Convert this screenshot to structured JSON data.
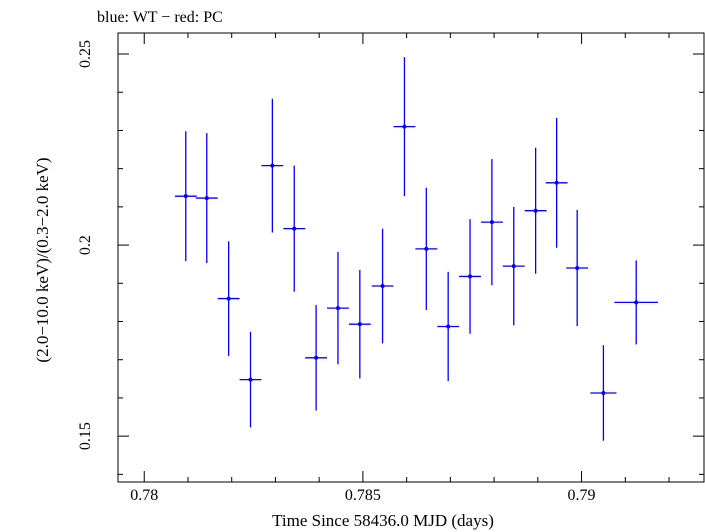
{
  "chart_data": {
    "type": "scatter",
    "title": "blue: WT − red: PC",
    "xlabel": "Time Since 58436.0 MJD (days)",
    "ylabel": "(2.0−10.0 keV)/(0.3−2.0 keV)",
    "xlim": [
      0.7794,
      0.7928
    ],
    "ylim": [
      0.138,
      0.2555
    ],
    "xticks": [
      0.78,
      0.785,
      0.79
    ],
    "xtick_labels": [
      "0.78",
      "0.785",
      "0.79"
    ],
    "yticks": [
      0.15,
      0.2,
      0.25
    ],
    "ytick_labels": [
      "0.15",
      "0.2",
      "0.25"
    ],
    "grid": false,
    "series": [
      {
        "name": "WT",
        "color": "#0000ff",
        "points": [
          {
            "x": 0.78095,
            "y": 0.2128,
            "xerr": 0.00025,
            "yerr": 0.017
          },
          {
            "x": 0.78143,
            "y": 0.2123,
            "xerr": 0.00025,
            "yerr": 0.017
          },
          {
            "x": 0.78193,
            "y": 0.186,
            "xerr": 0.00025,
            "yerr": 0.015
          },
          {
            "x": 0.78243,
            "y": 0.1648,
            "xerr": 0.00025,
            "yerr": 0.0125
          },
          {
            "x": 0.78293,
            "y": 0.2208,
            "xerr": 0.00025,
            "yerr": 0.0175
          },
          {
            "x": 0.78343,
            "y": 0.2043,
            "xerr": 0.00025,
            "yerr": 0.0165
          },
          {
            "x": 0.78393,
            "y": 0.1705,
            "xerr": 0.00025,
            "yerr": 0.0138
          },
          {
            "x": 0.78443,
            "y": 0.1835,
            "xerr": 0.00025,
            "yerr": 0.0147
          },
          {
            "x": 0.78493,
            "y": 0.1793,
            "xerr": 0.00025,
            "yerr": 0.0142
          },
          {
            "x": 0.78545,
            "y": 0.1893,
            "xerr": 0.00025,
            "yerr": 0.015
          },
          {
            "x": 0.78595,
            "y": 0.231,
            "xerr": 0.00025,
            "yerr": 0.0182
          },
          {
            "x": 0.78645,
            "y": 0.199,
            "xerr": 0.00025,
            "yerr": 0.016
          },
          {
            "x": 0.78695,
            "y": 0.1787,
            "xerr": 0.00025,
            "yerr": 0.0143
          },
          {
            "x": 0.78745,
            "y": 0.1918,
            "xerr": 0.00025,
            "yerr": 0.015
          },
          {
            "x": 0.78795,
            "y": 0.206,
            "xerr": 0.00025,
            "yerr": 0.0165
          },
          {
            "x": 0.78845,
            "y": 0.1945,
            "xerr": 0.00025,
            "yerr": 0.0155
          },
          {
            "x": 0.78895,
            "y": 0.209,
            "xerr": 0.00025,
            "yerr": 0.0165
          },
          {
            "x": 0.78943,
            "y": 0.2163,
            "xerr": 0.00025,
            "yerr": 0.017
          },
          {
            "x": 0.7899,
            "y": 0.194,
            "xerr": 0.00025,
            "yerr": 0.0152
          },
          {
            "x": 0.7905,
            "y": 0.1613,
            "xerr": 0.0003,
            "yerr": 0.0125
          },
          {
            "x": 0.79125,
            "y": 0.185,
            "xerr": 0.0005,
            "yerr": 0.011
          }
        ]
      }
    ]
  }
}
